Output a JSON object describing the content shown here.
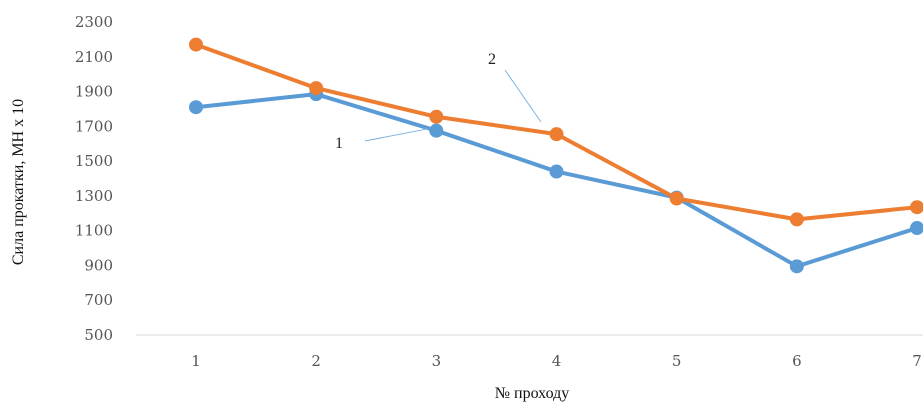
{
  "chart_data": {
    "type": "line",
    "title": "",
    "xlabel": "№ проходу",
    "ylabel": "Сила прокатки, МН х 10",
    "categories": [
      "1",
      "2",
      "3",
      "4",
      "5",
      "6",
      "7"
    ],
    "ylim": [
      500,
      2300
    ],
    "yticks": [
      500,
      700,
      900,
      1100,
      1300,
      1500,
      1700,
      1900,
      2100,
      2300
    ],
    "grid": false,
    "series": [
      {
        "name": "1",
        "color": "#5b9bd5",
        "values": [
          1810,
          1885,
          1675,
          1440,
          1290,
          895,
          1115
        ]
      },
      {
        "name": "2",
        "color": "#ed7d31",
        "values": [
          2170,
          1920,
          1755,
          1655,
          1285,
          1165,
          1235
        ]
      }
    ]
  }
}
